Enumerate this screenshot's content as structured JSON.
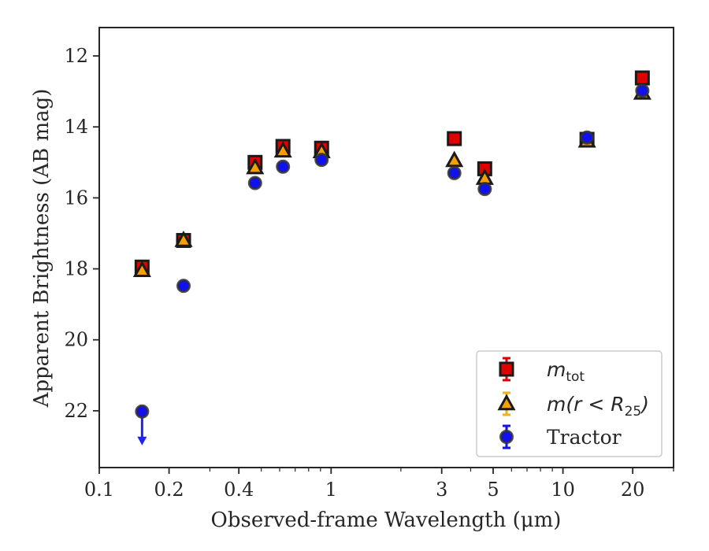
{
  "chart_data": {
    "type": "scatter",
    "xlabel": "Observed-frame Wavelength (μm)",
    "ylabel": "Apparent Brightness (AB mag)",
    "x_scale": "log",
    "x_range": [
      0.1,
      30
    ],
    "y_range": [
      23.6,
      11.2
    ],
    "y_inverted": true,
    "x_ticks": [
      {
        "value": 0.1,
        "label": "0.1"
      },
      {
        "value": 0.2,
        "label": "0.2"
      },
      {
        "value": 0.4,
        "label": "0.4"
      },
      {
        "value": 1,
        "label": "1"
      },
      {
        "value": 3,
        "label": "3"
      },
      {
        "value": 5,
        "label": "5"
      },
      {
        "value": 10,
        "label": "10"
      },
      {
        "value": 20,
        "label": "20"
      }
    ],
    "y_ticks": [
      12,
      14,
      16,
      18,
      20,
      22
    ],
    "grid": false,
    "legend_position": "bottom-right",
    "series": [
      {
        "name": "m_tot",
        "legend_main": "m",
        "legend_sub": "tot",
        "marker": "square",
        "color": "#e00000",
        "edge_color": "#1a1a1a",
        "points": [
          {
            "x": 0.153,
            "y": 17.95
          },
          {
            "x": 0.231,
            "y": 17.2
          },
          {
            "x": 0.47,
            "y": 15.0
          },
          {
            "x": 0.62,
            "y": 14.55
          },
          {
            "x": 0.91,
            "y": 14.6
          },
          {
            "x": 3.4,
            "y": 14.33
          },
          {
            "x": 4.6,
            "y": 15.18
          },
          {
            "x": 12.7,
            "y": 14.35
          },
          {
            "x": 22.0,
            "y": 12.62
          }
        ]
      },
      {
        "name": "m(r<R_25)",
        "legend_main": "m(r < R",
        "legend_sub": "25",
        "legend_tail": ")",
        "marker": "triangle",
        "color": "#f5a000",
        "edge_color": "#1a1a1a",
        "points": [
          {
            "x": 0.153,
            "y": 18.05
          },
          {
            "x": 0.231,
            "y": 17.2
          },
          {
            "x": 0.47,
            "y": 15.15
          },
          {
            "x": 0.62,
            "y": 14.68
          },
          {
            "x": 0.91,
            "y": 14.7
          },
          {
            "x": 3.4,
            "y": 14.95
          },
          {
            "x": 4.6,
            "y": 15.45
          },
          {
            "x": 12.7,
            "y": 14.4
          },
          {
            "x": 22.0,
            "y": 13.05
          }
        ]
      },
      {
        "name": "Tractor",
        "legend_main": "Tractor",
        "marker": "circle",
        "color": "#1111ee",
        "edge_color": "#333333",
        "points": [
          {
            "x": 0.153,
            "y": 22.02,
            "upper_limit": true,
            "arrow_to": 22.95
          },
          {
            "x": 0.231,
            "y": 18.48
          },
          {
            "x": 0.47,
            "y": 15.58
          },
          {
            "x": 0.62,
            "y": 15.12
          },
          {
            "x": 0.91,
            "y": 14.93
          },
          {
            "x": 3.4,
            "y": 15.3
          },
          {
            "x": 4.6,
            "y": 15.75
          },
          {
            "x": 12.7,
            "y": 14.3
          },
          {
            "x": 22.0,
            "y": 12.98
          }
        ]
      }
    ]
  }
}
